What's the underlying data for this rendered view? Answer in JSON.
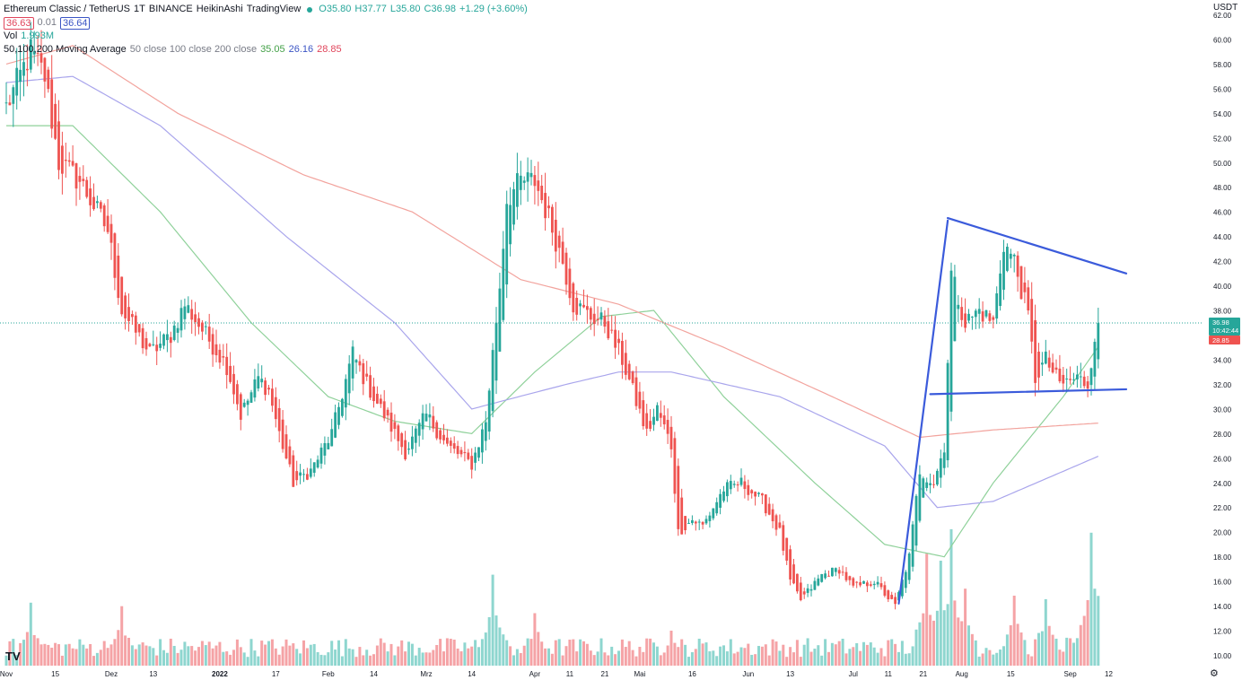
{
  "legend": {
    "title": "Ethereum Classic / TetherUS",
    "interval": "1T",
    "exchange": "BINANCE",
    "style": "HeikinAshi",
    "source": "TradingView",
    "ohlc": {
      "o": "O35.80",
      "h": "H37.77",
      "l": "L35.80",
      "c": "C36.98",
      "chg": "+1.29 (+3.60%)"
    },
    "bid": "36.63",
    "spread": "0.01",
    "ask": "36.64",
    "vol_label": "Vol",
    "vol_value": "1.993M",
    "ma_label": "50,100,200 Moving Average",
    "ma_params": "50 close 100 close 200 close",
    "ma50_value": "35.05",
    "ma100_value": "26.16",
    "ma200_value": "28.85"
  },
  "axis_unit": "USDT",
  "logo": "TV",
  "gear_icon": "gear-icon",
  "price_labels": {
    "current": "36.98",
    "countdown": "10:42:44",
    "ma200": "28.85"
  },
  "colors": {
    "up": "#26a69a",
    "down": "#ef5350",
    "vol_up": "#8ed6cf",
    "vol_down": "#f5a3a6",
    "ma50": "#8fd19a",
    "ma100": "#a9a5ec",
    "ma200": "#f2a39d",
    "drawing": "#3b5bdb"
  },
  "chart_data": {
    "type": "candlestick",
    "chart_style": "Heikin Ashi",
    "x_tick_labels": [
      "Nov",
      "15",
      "Dez",
      "13",
      "2022",
      "17",
      "Feb",
      "14",
      "Mrz",
      "14",
      "Apr",
      "11",
      "21",
      "Mai",
      "16",
      "Jun",
      "13",
      "Jul",
      "11",
      "21",
      "Aug",
      "15",
      "Sep",
      "12"
    ],
    "y_tick_labels": [
      "10.00",
      "12.00",
      "14.00",
      "16.00",
      "18.00",
      "20.00",
      "22.00",
      "24.00",
      "26.00",
      "28.00",
      "30.00",
      "32.00",
      "34.00",
      "36.00",
      "38.00",
      "40.00",
      "42.00",
      "44.00",
      "46.00",
      "48.00",
      "50.00",
      "52.00",
      "54.00",
      "56.00",
      "58.00",
      "60.00",
      "62.00"
    ],
    "ylim": [
      9.5,
      62.5
    ],
    "price_anchors": [
      [
        "2021-11-01",
        54.5
      ],
      [
        "2021-11-08",
        59
      ],
      [
        "2021-11-12",
        57
      ],
      [
        "2021-11-16",
        50
      ],
      [
        "2021-11-22",
        48.5
      ],
      [
        "2021-11-30",
        44.5
      ],
      [
        "2021-12-04",
        38
      ],
      [
        "2021-12-12",
        34.5
      ],
      [
        "2021-12-18",
        36
      ],
      [
        "2021-12-22",
        38.5
      ],
      [
        "2021-12-28",
        36
      ],
      [
        "2022-01-03",
        33.5
      ],
      [
        "2022-01-07",
        29.5
      ],
      [
        "2022-01-12",
        32.5
      ],
      [
        "2022-01-15",
        31.5
      ],
      [
        "2022-01-18",
        28
      ],
      [
        "2022-01-22",
        24
      ],
      [
        "2022-01-27",
        25
      ],
      [
        "2022-02-02",
        28
      ],
      [
        "2022-02-08",
        34.5
      ],
      [
        "2022-02-12",
        32
      ],
      [
        "2022-02-18",
        29
      ],
      [
        "2022-02-23",
        26.5
      ],
      [
        "2022-03-01",
        29.5
      ],
      [
        "2022-03-07",
        27
      ],
      [
        "2022-03-14",
        25.5
      ],
      [
        "2022-03-18",
        29
      ],
      [
        "2022-03-22",
        40
      ],
      [
        "2022-03-24",
        47
      ],
      [
        "2022-03-28",
        48.5
      ],
      [
        "2022-04-01",
        48.5
      ],
      [
        "2022-04-05",
        45.5
      ],
      [
        "2022-04-09",
        42
      ],
      [
        "2022-04-12",
        38.5
      ],
      [
        "2022-04-17",
        37.5
      ],
      [
        "2022-04-21",
        37
      ],
      [
        "2022-04-26",
        34
      ],
      [
        "2022-05-03",
        28
      ],
      [
        "2022-05-06",
        30
      ],
      [
        "2022-05-10",
        27
      ],
      [
        "2022-05-12",
        20
      ],
      [
        "2022-05-16",
        21
      ],
      [
        "2022-05-19",
        20.5
      ],
      [
        "2022-05-25",
        23.5
      ],
      [
        "2022-05-30",
        24
      ],
      [
        "2022-06-05",
        22.5
      ],
      [
        "2022-06-10",
        20
      ],
      [
        "2022-06-13",
        16
      ],
      [
        "2022-06-16",
        14.5
      ],
      [
        "2022-06-22",
        16.5
      ],
      [
        "2022-06-27",
        17
      ],
      [
        "2022-07-01",
        15.5
      ],
      [
        "2022-07-07",
        16
      ],
      [
        "2022-07-13",
        14
      ],
      [
        "2022-07-17",
        18
      ],
      [
        "2022-07-20",
        25
      ],
      [
        "2022-07-24",
        24
      ],
      [
        "2022-07-27",
        27
      ],
      [
        "2022-07-29",
        41
      ],
      [
        "2022-08-02",
        37
      ],
      [
        "2022-08-06",
        38
      ],
      [
        "2022-08-10",
        37
      ],
      [
        "2022-08-13",
        43.5
      ],
      [
        "2022-08-16",
        42
      ],
      [
        "2022-08-20",
        37.5
      ],
      [
        "2022-08-22",
        32.5
      ],
      [
        "2022-08-25",
        34
      ],
      [
        "2022-08-29",
        32
      ],
      [
        "2022-09-03",
        32.5
      ],
      [
        "2022-09-06",
        32
      ],
      [
        "2022-09-08",
        36
      ],
      [
        "2022-09-09",
        36.98
      ]
    ],
    "moving_averages": [
      {
        "name": "50 close",
        "value": 35.05,
        "points": [
          [
            "2021-11-01",
            53
          ],
          [
            "2021-11-20",
            53
          ],
          [
            "2021-12-15",
            46
          ],
          [
            "2022-01-10",
            37
          ],
          [
            "2022-02-01",
            31
          ],
          [
            "2022-02-20",
            29
          ],
          [
            "2022-03-14",
            28
          ],
          [
            "2022-04-01",
            33
          ],
          [
            "2022-04-20",
            37.5
          ],
          [
            "2022-05-05",
            38
          ],
          [
            "2022-05-25",
            31
          ],
          [
            "2022-06-20",
            24
          ],
          [
            "2022-07-10",
            19
          ],
          [
            "2022-07-27",
            18
          ],
          [
            "2022-08-10",
            24
          ],
          [
            "2022-08-30",
            31
          ],
          [
            "2022-09-09",
            35.05
          ]
        ]
      },
      {
        "name": "100 close",
        "value": 26.16,
        "points": [
          [
            "2021-11-01",
            56.5
          ],
          [
            "2021-11-20",
            57
          ],
          [
            "2021-12-15",
            53
          ],
          [
            "2022-01-20",
            44
          ],
          [
            "2022-02-20",
            37
          ],
          [
            "2022-03-14",
            30
          ],
          [
            "2022-04-10",
            32
          ],
          [
            "2022-04-25",
            33
          ],
          [
            "2022-05-10",
            33
          ],
          [
            "2022-06-10",
            31
          ],
          [
            "2022-07-10",
            27
          ],
          [
            "2022-07-25",
            22
          ],
          [
            "2022-08-10",
            22.5
          ],
          [
            "2022-09-09",
            26.16
          ]
        ]
      },
      {
        "name": "200 close",
        "value": 28.85,
        "points": [
          [
            "2021-11-01",
            58
          ],
          [
            "2021-11-20",
            59.5
          ],
          [
            "2021-12-20",
            54
          ],
          [
            "2022-01-25",
            49
          ],
          [
            "2022-02-25",
            46
          ],
          [
            "2022-03-28",
            40.5
          ],
          [
            "2022-04-25",
            38.5
          ],
          [
            "2022-05-25",
            35
          ],
          [
            "2022-06-25",
            31
          ],
          [
            "2022-07-20",
            27.7
          ],
          [
            "2022-08-10",
            28.3
          ],
          [
            "2022-09-09",
            28.85
          ]
        ]
      }
    ],
    "volume_spikes_M": [
      [
        "2021-11-08",
        1.8
      ],
      [
        "2021-12-04",
        1.7
      ],
      [
        "2022-03-20",
        2.6
      ],
      [
        "2022-04-01",
        1.5
      ],
      [
        "2022-05-10",
        1.0
      ],
      [
        "2022-07-22",
        3.2
      ],
      [
        "2022-07-26",
        3.0
      ],
      [
        "2022-07-29",
        3.9
      ],
      [
        "2022-08-02",
        2.2
      ],
      [
        "2022-08-16",
        2.0
      ],
      [
        "2022-08-25",
        1.9
      ],
      [
        "2022-09-07",
        3.8
      ],
      [
        "2022-09-08",
        2.2
      ],
      [
        "2022-09-09",
        1.993
      ]
    ],
    "drawings": [
      {
        "name": "pole-line",
        "points": [
          [
            "2022-07-14",
            14.2
          ],
          [
            "2022-07-28",
            45.3
          ]
        ]
      },
      {
        "name": "upper-trendline",
        "points": [
          [
            "2022-07-28",
            45.5
          ],
          [
            "2022-09-17",
            41
          ]
        ]
      },
      {
        "name": "lower-trendline",
        "points": [
          [
            "2022-07-23",
            31.2
          ],
          [
            "2022-09-17",
            31.6
          ]
        ]
      }
    ],
    "last_price": 36.98
  }
}
